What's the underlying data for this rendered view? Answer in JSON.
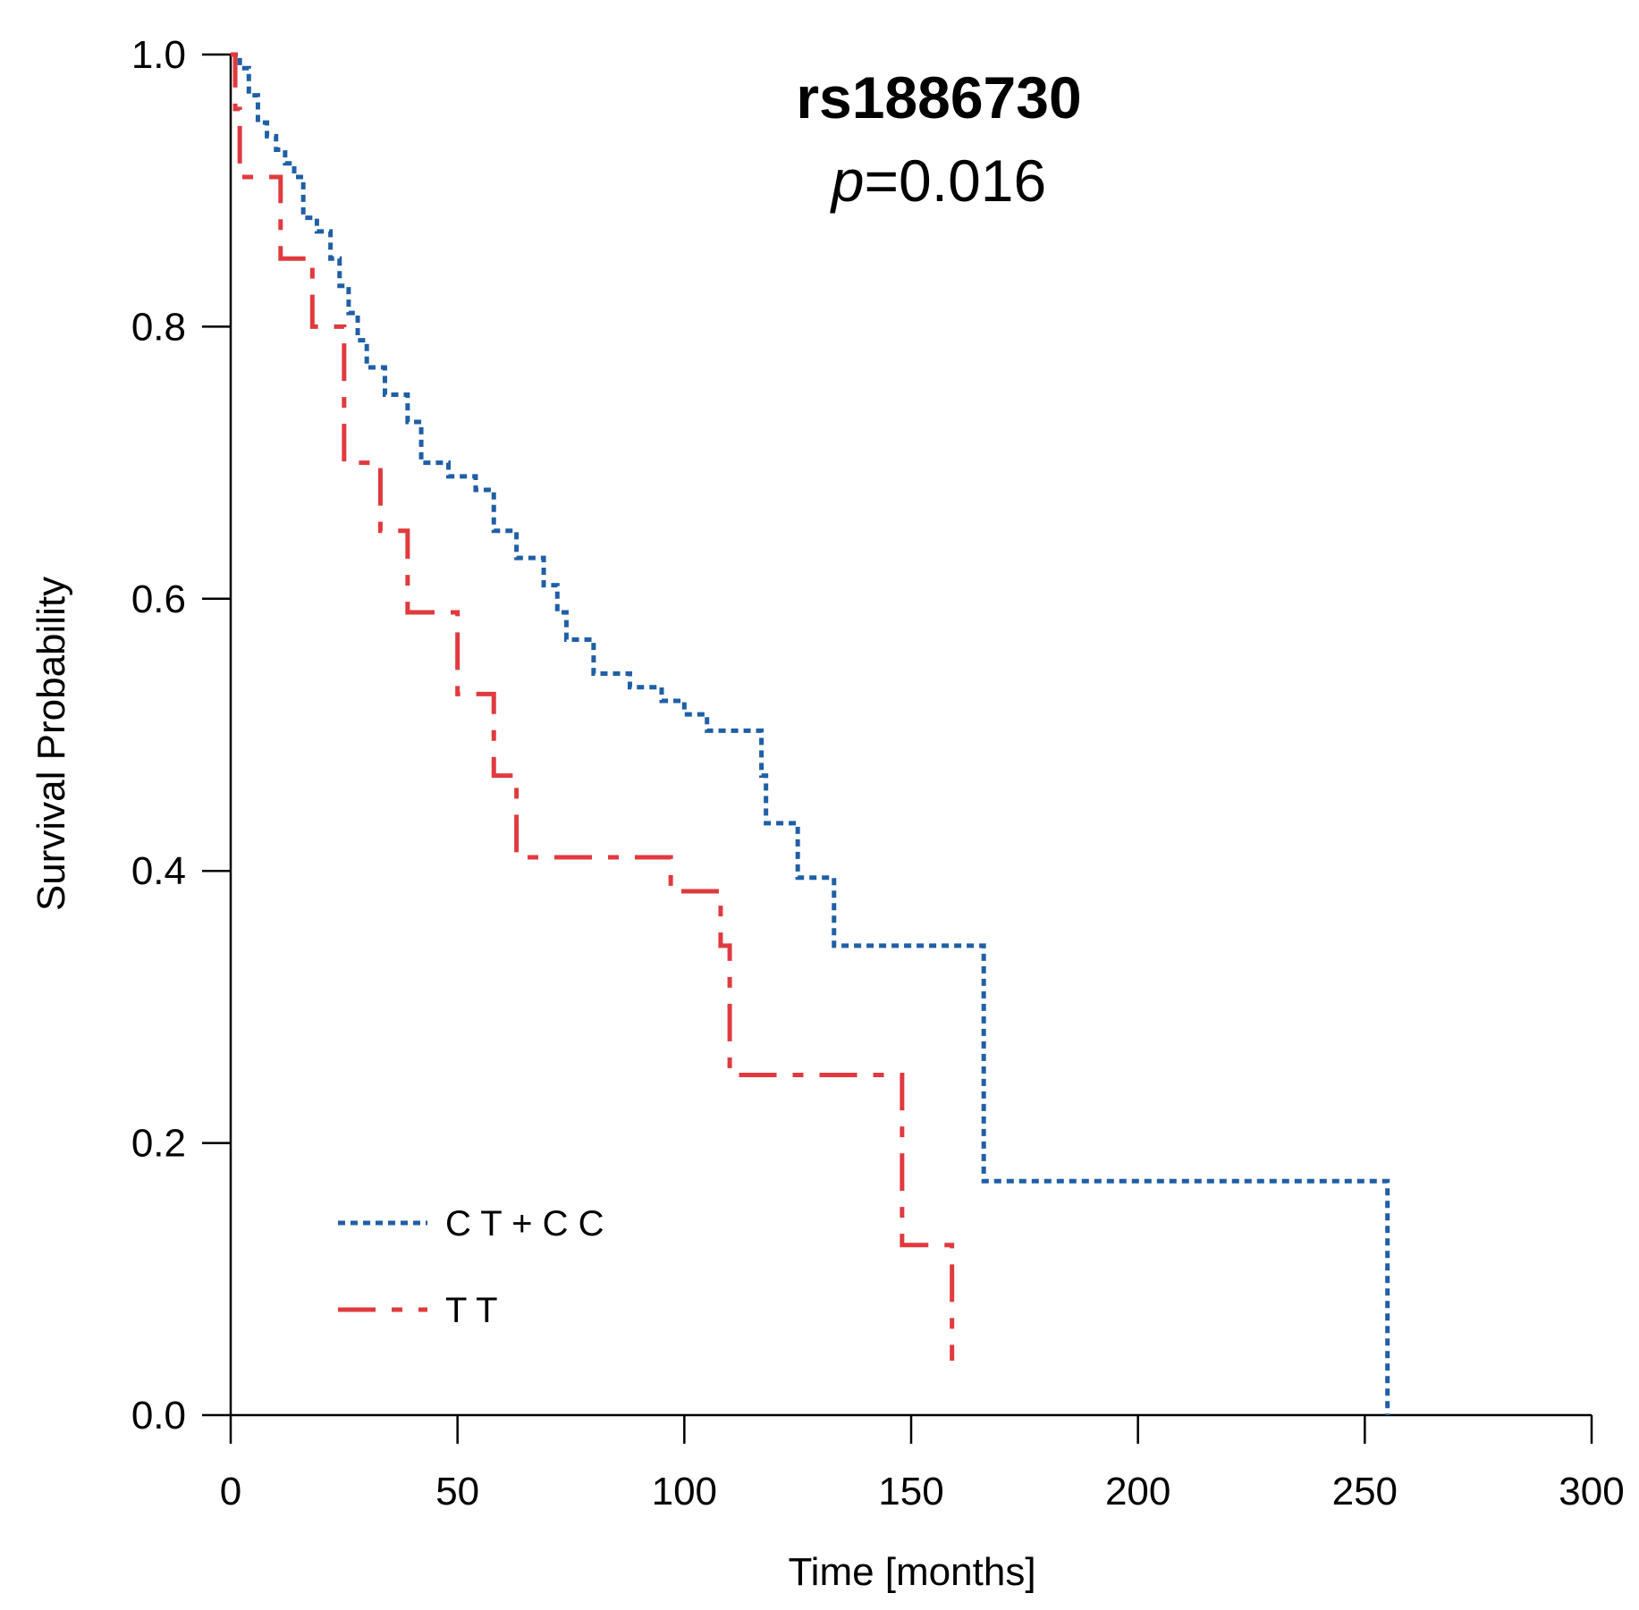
{
  "chart_data": {
    "type": "line",
    "subtype": "kaplan-meier-step",
    "title": "rs1886730",
    "subtitle": {
      "p_symbol": "p",
      "p_value": "=0.016"
    },
    "xlabel": "Time [months]",
    "ylabel": "Survival Probability",
    "xlim": [
      0,
      300
    ],
    "ylim": [
      0,
      1.0
    ],
    "xticks": [
      0,
      50,
      100,
      150,
      200,
      250,
      300
    ],
    "xtick_labels": [
      "0",
      "50",
      "100",
      "150",
      "200",
      "250",
      "300"
    ],
    "yticks": [
      0,
      0.2,
      0.4,
      0.6,
      0.8,
      1.0
    ],
    "ytick_labels": [
      "0.0",
      "0.2",
      "0.4",
      "0.6",
      "0.8",
      "1.0"
    ],
    "grid": false,
    "legend_position": "bottom-left",
    "series": [
      {
        "name": "C T + C C",
        "color": "#1f5fa6",
        "line_style": "dotted",
        "x": [
          0,
          2,
          4,
          6,
          8,
          10,
          12,
          14,
          16,
          19,
          22,
          24,
          26,
          28,
          30,
          34,
          39,
          42,
          48,
          54,
          58,
          63,
          69,
          72,
          74,
          80,
          88,
          95,
          100,
          105,
          117,
          118,
          125,
          133,
          166,
          255
        ],
        "y": [
          1.0,
          0.99,
          0.97,
          0.95,
          0.94,
          0.93,
          0.92,
          0.91,
          0.88,
          0.87,
          0.85,
          0.83,
          0.81,
          0.79,
          0.77,
          0.75,
          0.73,
          0.7,
          0.69,
          0.68,
          0.65,
          0.63,
          0.61,
          0.59,
          0.57,
          0.545,
          0.535,
          0.525,
          0.515,
          0.503,
          0.47,
          0.435,
          0.395,
          0.345,
          0.172,
          0.0
        ]
      },
      {
        "name": "T T",
        "color": "#e03a3e",
        "line_style": "dashed",
        "x": [
          0,
          1,
          2,
          11,
          18,
          25,
          33,
          39,
          50,
          58,
          63,
          97,
          108,
          110,
          148,
          159
        ],
        "y": [
          1.0,
          0.96,
          0.91,
          0.85,
          0.8,
          0.7,
          0.65,
          0.59,
          0.53,
          0.47,
          0.41,
          0.385,
          0.345,
          0.25,
          0.125,
          0.04
        ]
      }
    ]
  }
}
